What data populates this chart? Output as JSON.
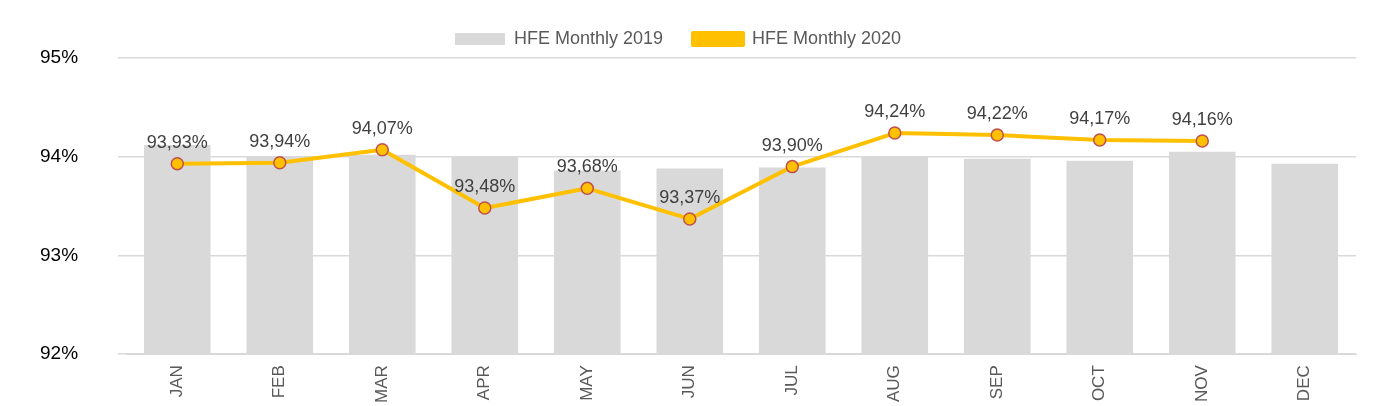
{
  "chart_data": {
    "type": "bar",
    "categories": [
      "JAN",
      "FEB",
      "MAR",
      "APR",
      "MAY",
      "JUN",
      "JUL",
      "AUG",
      "SEP",
      "OCT",
      "NOV",
      "DEC"
    ],
    "series": [
      {
        "name": "HFE Monthly 2019",
        "color": "#d9d9d9",
        "values": [
          94.12,
          94.0,
          94.02,
          94.0,
          93.86,
          93.88,
          93.89,
          94.0,
          93.98,
          93.96,
          94.05,
          93.93
        ]
      },
      {
        "name": "HFE Monthly 2020",
        "type": "line",
        "color": "#ffc000",
        "marker": "circle",
        "values": [
          93.93,
          93.94,
          94.07,
          93.48,
          93.68,
          93.37,
          93.9,
          94.24,
          94.22,
          94.17,
          94.16,
          null
        ],
        "value_labels": [
          "93,93%",
          "93,94%",
          "94,07%",
          "93,48%",
          "93,68%",
          "93,37%",
          "93,90%",
          "94,24%",
          "94,22%",
          "94,17%",
          "94,16%",
          null
        ]
      }
    ],
    "ylim": [
      92,
      95
    ],
    "yticks": [
      {
        "value": 92,
        "label": "92%"
      },
      {
        "value": 93,
        "label": "93%"
      },
      {
        "value": 94,
        "label": "94%"
      },
      {
        "value": 95,
        "label": "95%"
      }
    ],
    "grid": "y",
    "legend": "top"
  }
}
